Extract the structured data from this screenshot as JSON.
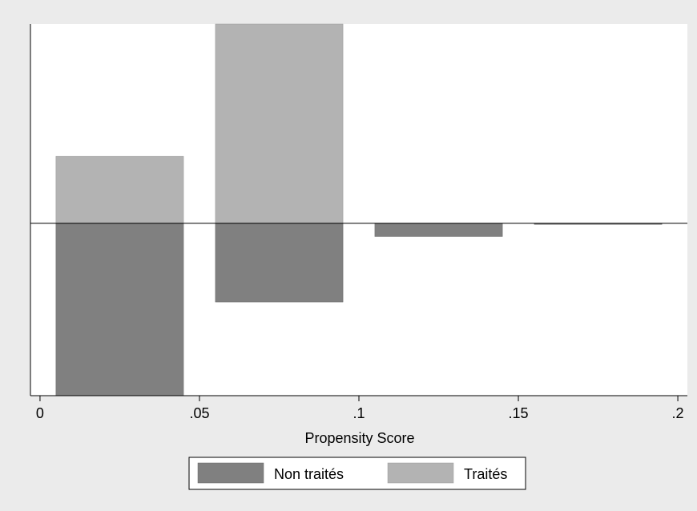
{
  "chart_data": {
    "type": "bar",
    "subtype": "mirrored-histogram",
    "xlabel": "Propensity Score",
    "ylabel": "",
    "xlim": [
      -0.003,
      0.203
    ],
    "x_ticks": [
      {
        "value": 0,
        "label": "0"
      },
      {
        "value": 0.05,
        "label": ".05"
      },
      {
        "value": 0.1,
        "label": ".1"
      },
      {
        "value": 0.15,
        "label": ".15"
      },
      {
        "value": 0.2,
        "label": ".2"
      }
    ],
    "y_ticks_shown": false,
    "ylim": [
      -0.58,
      0.67
    ],
    "bins": [
      {
        "from": 0.005,
        "to": 0.045
      },
      {
        "from": 0.055,
        "to": 0.095
      },
      {
        "from": 0.105,
        "to": 0.145
      },
      {
        "from": 0.155,
        "to": 0.195
      }
    ],
    "series": [
      {
        "name": "Non traités",
        "direction": "down",
        "color": "#808080",
        "values": [
          0.58,
          0.265,
          0.045,
          0.004
        ]
      },
      {
        "name": "Traités",
        "direction": "up",
        "color": "#b3b3b3",
        "values": [
          0.225,
          0.67,
          0,
          0
        ]
      }
    ],
    "grid": false,
    "legend_position": "bottom"
  }
}
